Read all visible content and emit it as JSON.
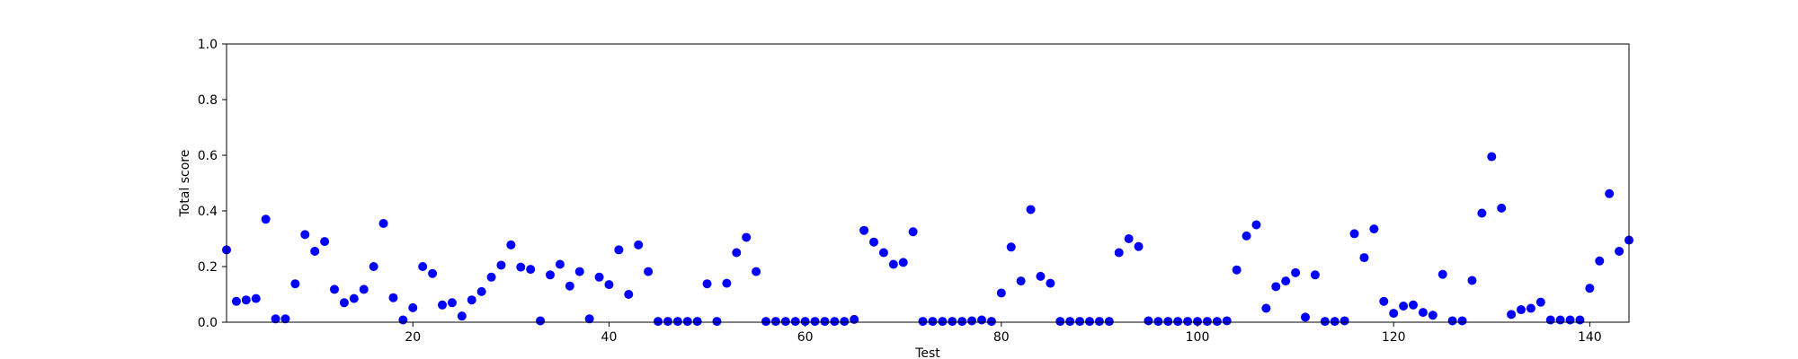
{
  "chart_data": {
    "type": "scatter",
    "xlabel": "Test",
    "ylabel": "Total score",
    "xlim": [
      1,
      144
    ],
    "ylim": [
      0,
      1.0
    ],
    "xticks": [
      20,
      40,
      60,
      80,
      100,
      120,
      140
    ],
    "yticks": [
      0.0,
      0.2,
      0.4,
      0.6,
      0.8,
      1.0
    ],
    "ytick_labels": [
      "0.0",
      "0.2",
      "0.4",
      "0.6",
      "0.8",
      "1.0"
    ],
    "grid": false,
    "marker_color": "#0000ff",
    "series": [
      {
        "x": [
          1,
          2,
          3,
          4,
          5,
          6,
          7,
          8,
          9,
          10,
          11,
          12,
          13,
          14,
          15,
          16,
          17,
          18,
          19,
          20,
          21,
          22,
          23,
          24,
          25,
          26,
          27,
          28,
          29,
          30,
          31,
          32,
          33,
          34,
          35,
          36,
          37,
          38,
          39,
          40,
          41,
          42,
          43,
          44,
          45,
          46,
          47,
          48,
          49,
          50,
          51,
          52,
          53,
          54,
          55,
          56,
          57,
          58,
          59,
          60,
          61,
          62,
          63,
          64,
          65,
          66,
          67,
          68,
          69,
          70,
          71,
          72,
          73,
          74,
          75,
          76,
          77,
          78,
          79,
          80,
          81,
          82,
          83,
          84,
          85,
          86,
          87,
          88,
          89,
          90,
          91,
          92,
          93,
          94,
          95,
          96,
          97,
          98,
          99,
          100,
          101,
          102,
          103,
          104,
          105,
          106,
          107,
          108,
          109,
          110,
          111,
          112,
          113,
          114,
          115,
          116,
          117,
          118,
          119,
          120,
          121,
          122,
          123,
          124,
          125,
          126,
          127,
          128,
          129,
          130,
          131,
          132,
          133,
          134,
          135,
          136,
          137,
          138,
          139,
          140,
          141,
          142,
          143,
          144
        ],
        "y": [
          0.26,
          0.075,
          0.08,
          0.085,
          0.37,
          0.012,
          0.012,
          0.138,
          0.315,
          0.255,
          0.29,
          0.118,
          0.07,
          0.085,
          0.118,
          0.2,
          0.355,
          0.088,
          0.008,
          0.052,
          0.2,
          0.175,
          0.062,
          0.07,
          0.022,
          0.08,
          0.11,
          0.162,
          0.205,
          0.278,
          0.198,
          0.19,
          0.005,
          0.17,
          0.208,
          0.13,
          0.182,
          0.012,
          0.162,
          0.135,
          0.26,
          0.1,
          0.278,
          0.182,
          0.003,
          0.003,
          0.003,
          0.003,
          0.003,
          0.138,
          0.003,
          0.14,
          0.25,
          0.305,
          0.182,
          0.003,
          0.003,
          0.003,
          0.003,
          0.003,
          0.003,
          0.003,
          0.003,
          0.003,
          0.01,
          0.33,
          0.288,
          0.25,
          0.208,
          0.215,
          0.325,
          0.003,
          0.003,
          0.003,
          0.003,
          0.003,
          0.005,
          0.008,
          0.003,
          0.105,
          0.27,
          0.148,
          0.405,
          0.165,
          0.14,
          0.003,
          0.003,
          0.003,
          0.003,
          0.003,
          0.003,
          0.25,
          0.3,
          0.272,
          0.005,
          0.003,
          0.003,
          0.003,
          0.003,
          0.003,
          0.003,
          0.003,
          0.005,
          0.188,
          0.31,
          0.35,
          0.05,
          0.128,
          0.148,
          0.178,
          0.018,
          0.17,
          0.003,
          0.003,
          0.005,
          0.318,
          0.232,
          0.335,
          0.075,
          0.032,
          0.058,
          0.062,
          0.035,
          0.025,
          0.172,
          0.005,
          0.005,
          0.15,
          0.392,
          0.595,
          0.41,
          0.028,
          0.045,
          0.05,
          0.072,
          0.008,
          0.008,
          0.008,
          0.008,
          0.122,
          0.22,
          0.462,
          0.255,
          0.295
        ]
      }
    ]
  }
}
